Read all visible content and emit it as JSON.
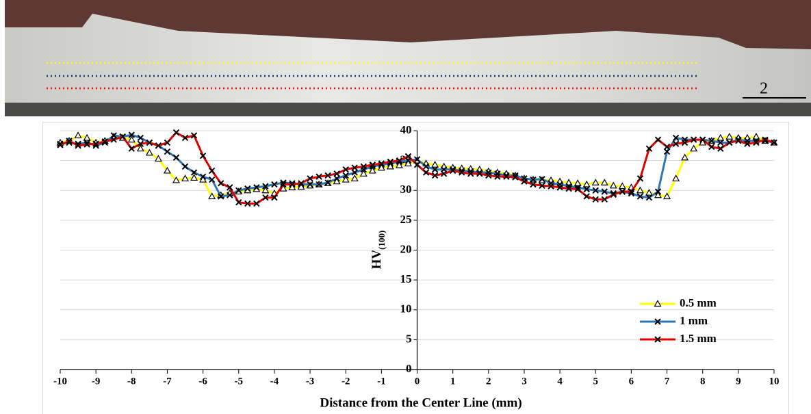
{
  "image": {
    "scale_label": "2"
  },
  "chart_data": {
    "type": "line",
    "xlabel": "Distance from the Center Line (mm)",
    "ylabel": "HV",
    "ylabel_sub": "(100)",
    "x": [
      -10,
      -9.75,
      -9.5,
      -9.25,
      -9,
      -8.75,
      -8.5,
      -8.25,
      -8,
      -7.75,
      -7.5,
      -7.25,
      -7,
      -6.75,
      -6.5,
      -6.25,
      -6,
      -5.75,
      -5.5,
      -5.25,
      -5,
      -4.75,
      -4.5,
      -4.25,
      -4,
      -3.75,
      -3.5,
      -3.25,
      -3,
      -2.75,
      -2.5,
      -2.25,
      -2,
      -1.75,
      -1.5,
      -1.25,
      -1,
      -0.75,
      -0.5,
      -0.25,
      0,
      0.25,
      0.5,
      0.75,
      1,
      1.25,
      1.5,
      1.75,
      2,
      2.25,
      2.5,
      2.75,
      3,
      3.25,
      3.5,
      3.75,
      4,
      4.25,
      4.5,
      4.75,
      5,
      5.25,
      5.5,
      5.75,
      6,
      6.25,
      6.5,
      6.75,
      7,
      7.25,
      7.5,
      7.75,
      8,
      8.25,
      8.5,
      8.75,
      9,
      9.25,
      9.5,
      9.75,
      10
    ],
    "xlim": [
      -10,
      10
    ],
    "xticks": [
      -10,
      -9,
      -8,
      -7,
      -6,
      -5,
      -4,
      -3,
      -2,
      -1,
      0,
      1,
      2,
      3,
      4,
      5,
      6,
      7,
      8,
      9,
      10
    ],
    "ylim": [
      0,
      40
    ],
    "yticks": [
      0,
      5,
      10,
      15,
      20,
      25,
      30,
      35,
      40
    ],
    "grid": true,
    "legend": "lower right",
    "series": [
      {
        "name": "0.5 mm",
        "color": "#ffff00",
        "marker": "triangle",
        "values": [
          38,
          38.3,
          39.2,
          38.8,
          38,
          38.3,
          39,
          38.8,
          38.5,
          37,
          36.3,
          35.3,
          33.3,
          31.7,
          32,
          32.1,
          31.8,
          29,
          29.2,
          29.5,
          29.8,
          30,
          30.2,
          30,
          29.5,
          30.3,
          30.5,
          30.6,
          30.8,
          31,
          31.2,
          31.5,
          31.8,
          32,
          32.8,
          33.3,
          33.8,
          34,
          34.2,
          34.5,
          35,
          34.5,
          34.3,
          34,
          33.8,
          33.7,
          33.6,
          33.5,
          33.2,
          33,
          32.8,
          32.5,
          32,
          31.8,
          31.7,
          31.7,
          31.5,
          31.3,
          31.2,
          31,
          31.3,
          31.3,
          30.8,
          30.7,
          30.5,
          30,
          29.6,
          29.2,
          29,
          32,
          35.5,
          37,
          38,
          38.3,
          38.8,
          39,
          38.8,
          38.8,
          39,
          38.3,
          38
        ]
      },
      {
        "name": "1 mm",
        "color": "#2e75b6",
        "marker": "x",
        "values": [
          37.8,
          38,
          37.8,
          38,
          37.5,
          38,
          39.2,
          39,
          39.3,
          38.8,
          38,
          37.5,
          36.5,
          35.5,
          34,
          33,
          32.3,
          31.8,
          29,
          29.2,
          30,
          30.3,
          30.5,
          30.7,
          31,
          31.3,
          31.2,
          31,
          31,
          31,
          31.3,
          32,
          32.5,
          33,
          33.5,
          34,
          34.3,
          34.5,
          34.8,
          35,
          35.2,
          34,
          33.5,
          33.5,
          33.5,
          33.3,
          33.2,
          33,
          33,
          32.8,
          32.5,
          32.5,
          32,
          31.8,
          31.9,
          31.2,
          31,
          30.7,
          30.5,
          30.2,
          30,
          29.8,
          29.5,
          29.8,
          29.5,
          29,
          28.8,
          29.8,
          36.5,
          38.8,
          38.5,
          38.5,
          38.5,
          38.3,
          38,
          38,
          38.5,
          38.3,
          38.3,
          38.3,
          38
        ]
      },
      {
        "name": "1.5 mm",
        "color": "#e00000",
        "marker": "x",
        "values": [
          37.6,
          38.3,
          37.5,
          37.7,
          37.8,
          38.2,
          38.5,
          39,
          37,
          37.8,
          38,
          37.5,
          38,
          39.7,
          38.8,
          39.2,
          35.8,
          33.3,
          31.2,
          30.5,
          28,
          27.8,
          27.8,
          28.8,
          28.8,
          31,
          31,
          31.2,
          32,
          32.3,
          32.5,
          32.8,
          33.5,
          33.8,
          34,
          34.3,
          34.5,
          34.8,
          35,
          35.7,
          34.3,
          33,
          32.5,
          32.8,
          33.3,
          33,
          32.8,
          32.8,
          32.5,
          32.3,
          32.3,
          32.2,
          31.5,
          31,
          30.8,
          30.7,
          30.5,
          30.3,
          30.2,
          29,
          28.5,
          28.5,
          29.3,
          29.8,
          29.8,
          32,
          37,
          38.5,
          37.3,
          37.8,
          38,
          38.5,
          38.5,
          37.3,
          37,
          38,
          38.3,
          37.8,
          38,
          38.5,
          38
        ]
      }
    ]
  }
}
